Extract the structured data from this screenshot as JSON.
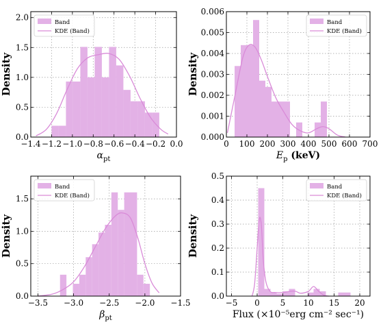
{
  "style": {
    "bar_color": "#e3b1e6",
    "kde_color": "#d98bd8",
    "grid_color": "#9a9a9a"
  },
  "chart_data": [
    {
      "type": "bar",
      "panel": "alpha",
      "xlabel": "α_pt",
      "ylabel": "Density",
      "xlim": [
        -1.4,
        0.0
      ],
      "ylim": [
        0,
        2.1
      ],
      "xticks": [
        -1.4,
        -1.2,
        -1.0,
        -0.8,
        -0.6,
        -0.4,
        -0.2,
        0.0
      ],
      "xtick_labels": [
        "−1.4",
        "−1.2",
        "−1.0",
        "−0.8",
        "−0.6",
        "−0.4",
        "−0.2",
        "0.0"
      ],
      "yticks": [
        0.0,
        0.5,
        1.0,
        1.5,
        2.0
      ],
      "ytick_labels": [
        "0.0",
        "0.5",
        "1.0",
        "1.5",
        "2.0"
      ],
      "grid": true,
      "legend": {
        "position": "top-left",
        "entries": [
          "Band",
          "KDE (Band)"
        ]
      },
      "series": [
        {
          "name": "Band",
          "type": "histogram",
          "bin_edges": [
            -1.2,
            -1.131,
            -1.062,
            -0.993,
            -0.924,
            -0.855,
            -0.786,
            -0.717,
            -0.648,
            -0.579,
            -0.51,
            -0.441,
            -0.372,
            -0.303,
            -0.234,
            -0.165
          ],
          "values": [
            0.19,
            0.19,
            0.93,
            0.93,
            1.51,
            1.0,
            1.51,
            1.0,
            1.51,
            1.2,
            0.79,
            0.6,
            0.6,
            0.41,
            0.41
          ]
        },
        {
          "name": "KDE (Band)",
          "type": "line",
          "x": [
            -1.35,
            -1.25,
            -1.15,
            -1.05,
            -0.95,
            -0.85,
            -0.75,
            -0.65,
            -0.55,
            -0.45,
            -0.35,
            -0.25,
            -0.15,
            -0.08
          ],
          "y": [
            0.02,
            0.13,
            0.4,
            0.8,
            1.15,
            1.33,
            1.38,
            1.4,
            1.3,
            1.02,
            0.65,
            0.33,
            0.13,
            0.05
          ]
        }
      ]
    },
    {
      "type": "bar",
      "panel": "ep",
      "xlabel": "E_p (keV)",
      "ylabel": "Density",
      "xlim": [
        0,
        700
      ],
      "ylim": [
        0,
        0.006
      ],
      "xticks": [
        0,
        100,
        200,
        300,
        400,
        500,
        600,
        700
      ],
      "xtick_labels": [
        "0",
        "100",
        "200",
        "300",
        "400",
        "500",
        "600",
        "700"
      ],
      "yticks": [
        0.0,
        0.001,
        0.002,
        0.003,
        0.004,
        0.005,
        0.006
      ],
      "ytick_labels": [
        "0.000",
        "0.001",
        "0.002",
        "0.003",
        "0.004",
        "0.005",
        "0.006"
      ],
      "grid": true,
      "legend": {
        "position": "top-right",
        "entries": [
          "Band",
          "KDE (Band)"
        ]
      },
      "series": [
        {
          "name": "Band",
          "type": "histogram",
          "bin_edges": [
            40,
            70,
            100,
            130,
            160,
            190,
            220,
            250,
            280,
            310,
            340,
            370,
            400,
            430,
            460,
            490
          ],
          "values": [
            0.0034,
            0.0044,
            0.0044,
            0.0056,
            0.0027,
            0.0024,
            0.0017,
            0.0017,
            0.0017,
            0.0,
            0.0007,
            0.0,
            0.0,
            0.0007,
            0.0017
          ]
        },
        {
          "name": "KDE (Band)",
          "type": "line",
          "x": [
            5,
            40,
            80,
            110,
            140,
            170,
            200,
            240,
            280,
            320,
            360,
            400,
            440,
            470,
            500,
            540,
            580
          ],
          "y": [
            0.0002,
            0.0019,
            0.0038,
            0.0044,
            0.0043,
            0.0037,
            0.0029,
            0.0019,
            0.0012,
            0.0006,
            0.0003,
            0.0002,
            0.0004,
            0.0005,
            0.0004,
            0.0001,
            0.0
          ]
        }
      ]
    },
    {
      "type": "bar",
      "panel": "beta",
      "xlabel": "β_pt",
      "ylabel": "Density",
      "xlim": [
        -3.6,
        -1.5
      ],
      "ylim": [
        0,
        1.85
      ],
      "xticks": [
        -3.5,
        -3.0,
        -2.5,
        -2.0,
        -1.5
      ],
      "xtick_labels": [
        "−3.5",
        "−3.0",
        "−2.5",
        "−2.0",
        "−1.5"
      ],
      "yticks": [
        0.0,
        0.5,
        1.0,
        1.5
      ],
      "ytick_labels": [
        "0.0",
        "0.5",
        "1.0",
        "1.5"
      ],
      "grid": true,
      "legend": {
        "position": "top-left",
        "entries": [
          "Band",
          "KDE (Band)"
        ]
      },
      "series": [
        {
          "name": "Band",
          "type": "histogram",
          "bin_edges": [
            -3.19,
            -3.1,
            -3.01,
            -2.92,
            -2.83,
            -2.74,
            -2.65,
            -2.56,
            -2.47,
            -2.38,
            -2.29,
            -2.2,
            -2.11,
            -2.02,
            -1.93
          ],
          "values": [
            0.33,
            0.0,
            0.19,
            0.33,
            0.6,
            0.8,
            0.98,
            1.1,
            1.6,
            1.33,
            1.6,
            1.6,
            0.33,
            0.19
          ]
        },
        {
          "name": "KDE (Band)",
          "type": "line",
          "x": [
            -3.5,
            -3.3,
            -3.15,
            -3.0,
            -2.85,
            -2.7,
            -2.55,
            -2.4,
            -2.3,
            -2.2,
            -2.1,
            -2.0,
            -1.9,
            -1.8
          ],
          "y": [
            0.0,
            0.03,
            0.1,
            0.22,
            0.45,
            0.75,
            1.05,
            1.25,
            1.28,
            1.2,
            0.9,
            0.5,
            0.2,
            0.05
          ]
        }
      ]
    },
    {
      "type": "bar",
      "panel": "flux",
      "xlabel": "Flux (×10⁻⁵erg cm⁻² sec⁻¹)",
      "ylabel": "Density",
      "xlim": [
        -6,
        22
      ],
      "ylim": [
        0,
        0.5
      ],
      "xticks": [
        -5,
        0,
        5,
        10,
        15,
        20
      ],
      "xtick_labels": [
        "−5",
        "0",
        "5",
        "10",
        "15",
        "20"
      ],
      "yticks": [
        0.0,
        0.1,
        0.2,
        0.3,
        0.4,
        0.5
      ],
      "ytick_labels": [
        "0.0",
        "0.1",
        "0.2",
        "0.3",
        "0.4",
        "0.5"
      ],
      "grid": true,
      "legend": {
        "position": "top-right",
        "entries": [
          "Band",
          "KDE (Band)"
        ]
      },
      "series": [
        {
          "name": "Band",
          "type": "histogram",
          "bin_edges": [
            0.2,
            1.4,
            2.6,
            3.8,
            5.0,
            6.2,
            7.4,
            8.6,
            9.8,
            11.0,
            12.2,
            13.4,
            14.6,
            15.8,
            17.0,
            18.2
          ],
          "values": [
            0.45,
            0.03,
            0.015,
            0.01,
            0.02,
            0.03,
            0.0,
            0.0,
            0.015,
            0.03,
            0.02,
            0.0,
            0.0,
            0.015,
            0.015
          ]
        },
        {
          "name": "KDE (Band)",
          "type": "line",
          "x": [
            -1.0,
            -0.5,
            0.0,
            0.4,
            0.8,
            1.2,
            1.7,
            2.5,
            3.5,
            5.0,
            6.5,
            7.5,
            8.5,
            10.0,
            11.0,
            12.0,
            13.0,
            14.0
          ],
          "y": [
            0.0,
            0.05,
            0.2,
            0.32,
            0.3,
            0.15,
            0.06,
            0.02,
            0.015,
            0.015,
            0.02,
            0.02,
            0.012,
            0.02,
            0.04,
            0.02,
            0.004,
            0.0
          ]
        }
      ]
    }
  ]
}
